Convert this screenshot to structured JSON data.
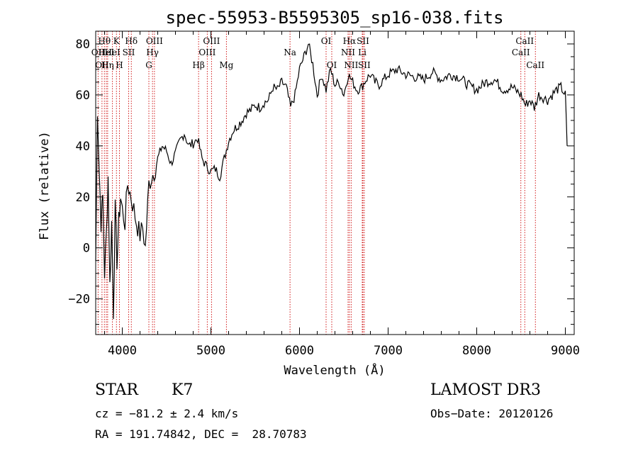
{
  "chart_data": {
    "type": "line",
    "title": "spec-55953-B5595305_sp16-038.fits",
    "xlabel": "Wavelength (Å)",
    "ylabel": "Flux (relative)",
    "xlim": [
      3700,
      9100
    ],
    "ylim": [
      -34,
      85
    ],
    "xticks": [
      4000,
      5000,
      6000,
      7000,
      8000,
      9000
    ],
    "yticks": [
      -20,
      0,
      20,
      40,
      60,
      80
    ],
    "grid": false,
    "series": [
      {
        "x": [
          3700,
          3720,
          3740,
          3760,
          3780,
          3800,
          3820,
          3840,
          3860,
          3880,
          3900,
          3920,
          3940,
          3960,
          3980,
          4000,
          4030,
          4060,
          4100,
          4130,
          4160,
          4200,
          4230,
          4260,
          4300,
          4330,
          4360,
          4400,
          4450,
          4500,
          4550,
          4600,
          4650,
          4700,
          4750,
          4800,
          4850,
          4900,
          4950,
          5000,
          5050,
          5100,
          5150,
          5200,
          5250,
          5300,
          5350,
          5400,
          5450,
          5500,
          5550,
          5600,
          5650,
          5700,
          5750,
          5800,
          5850,
          5900,
          5950,
          6000,
          6050,
          6100,
          6150,
          6200,
          6250,
          6300,
          6350,
          6400,
          6450,
          6500,
          6550,
          6600,
          6650,
          6700,
          6750,
          6800,
          6850,
          6900,
          6950,
          7000,
          7100,
          7200,
          7300,
          7400,
          7500,
          7600,
          7700,
          7800,
          7900,
          8000,
          8100,
          8200,
          8300,
          8400,
          8500,
          8550,
          8600,
          8650,
          8700,
          8800,
          8900,
          8950,
          9000,
          9020
        ],
        "y": [
          -5,
          55,
          30,
          10,
          20,
          -10,
          5,
          28,
          -15,
          10,
          -25,
          15,
          -5,
          10,
          20,
          15,
          10,
          25,
          20,
          15,
          10,
          5,
          8,
          0,
          25,
          28,
          30,
          35,
          40,
          38,
          33,
          37,
          42,
          45,
          40,
          41,
          43,
          35,
          32,
          30,
          31,
          28,
          35,
          42,
          46,
          48,
          50,
          53,
          54,
          56,
          55,
          57,
          58,
          63,
          62,
          65,
          63,
          55,
          60,
          70,
          75,
          80,
          72,
          60,
          68,
          62,
          70,
          64,
          65,
          60,
          68,
          65,
          62,
          63,
          66,
          68,
          65,
          64,
          66,
          68,
          70,
          68,
          67,
          66,
          69,
          66,
          68,
          67,
          64,
          62,
          65,
          66,
          62,
          63,
          60,
          56,
          58,
          55,
          60,
          58,
          62,
          63,
          60,
          40
        ]
      }
    ],
    "line_markers": [
      {
        "wavelength": 3727,
        "label": "OII",
        "row": 2
      },
      {
        "wavelength": 3771,
        "label": "OII",
        "row": 3
      },
      {
        "wavelength": 3798,
        "label": "Hθ",
        "row": 1
      },
      {
        "wavelength": 3820,
        "label": "HeI",
        "row": 2
      },
      {
        "wavelength": 3835,
        "label": "Hη",
        "row": 3
      },
      {
        "wavelength": 3889,
        "label": "HeI",
        "row": 2
      },
      {
        "wavelength": 3934,
        "label": "K",
        "row": 1
      },
      {
        "wavelength": 3968,
        "label": "H",
        "row": 3
      },
      {
        "wavelength": 4072,
        "label": "SII",
        "row": 2
      },
      {
        "wavelength": 4102,
        "label": "Hδ",
        "row": 1
      },
      {
        "wavelength": 4300,
        "label": "G",
        "row": 3
      },
      {
        "wavelength": 4341,
        "label": "Hγ",
        "row": 2
      },
      {
        "wavelength": 4363,
        "label": "OIII",
        "row": 1
      },
      {
        "wavelength": 4861,
        "label": "Hβ",
        "row": 3
      },
      {
        "wavelength": 4959,
        "label": "OIII",
        "row": 2
      },
      {
        "wavelength": 5007,
        "label": "OIII",
        "row": 1
      },
      {
        "wavelength": 5175,
        "label": "Mg",
        "row": 3
      },
      {
        "wavelength": 5893,
        "label": "Na",
        "row": 2
      },
      {
        "wavelength": 6300,
        "label": "OI",
        "row": 1
      },
      {
        "wavelength": 6364,
        "label": "OI",
        "row": 3
      },
      {
        "wavelength": 6548,
        "label": "NII",
        "row": 2
      },
      {
        "wavelength": 6563,
        "label": "Hα",
        "row": 1
      },
      {
        "wavelength": 6583,
        "label": "NII",
        "row": 3
      },
      {
        "wavelength": 6708,
        "label": "Li",
        "row": 2
      },
      {
        "wavelength": 6716,
        "label": "SII",
        "row": 1
      },
      {
        "wavelength": 6731,
        "label": "SII",
        "row": 3
      },
      {
        "wavelength": 8498,
        "label": "CaII",
        "row": 2
      },
      {
        "wavelength": 8542,
        "label": "CaII",
        "row": 1
      },
      {
        "wavelength": 8662,
        "label": "CaII",
        "row": 3
      }
    ]
  },
  "info": {
    "class": "STAR",
    "subclass": "K7",
    "cz": "cz = −81.2 ± 2.4 km/s",
    "coords": "RA = 191.74842, DEC =  28.70783",
    "survey": "LAMOST DR3",
    "obs_date": "Obs−Date: 20120126"
  }
}
